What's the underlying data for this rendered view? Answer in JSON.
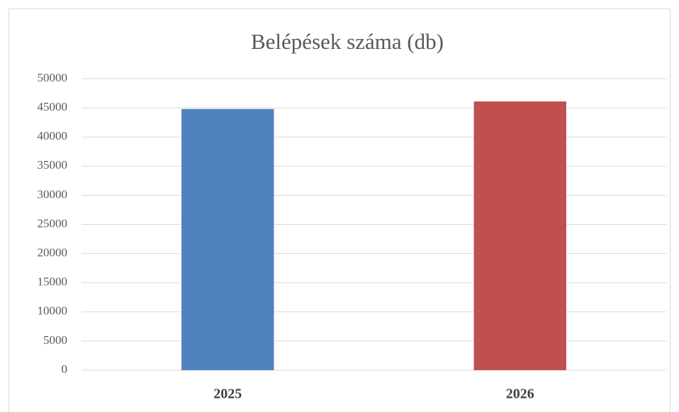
{
  "chart_data": {
    "type": "bar",
    "title": "Belépések száma (db)",
    "categories": [
      "2025",
      "2026"
    ],
    "values": [
      44800,
      46100
    ],
    "colors": [
      "#4f81bd",
      "#c0504d"
    ],
    "ylim": [
      0,
      50000
    ],
    "yticks": [
      0,
      5000,
      10000,
      15000,
      20000,
      25000,
      30000,
      35000,
      40000,
      45000,
      50000
    ],
    "grid": true
  }
}
